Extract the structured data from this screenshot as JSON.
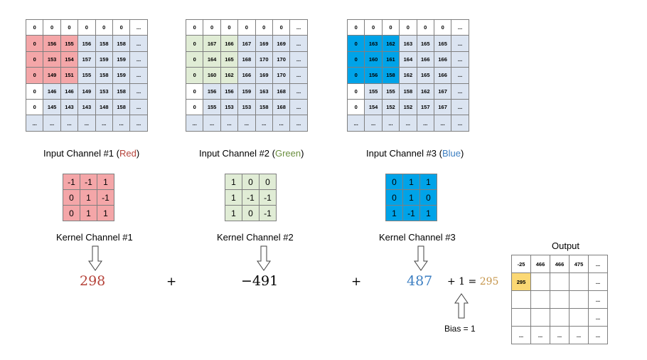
{
  "inputs": [
    {
      "title": "Input Channel #1 (",
      "color_word": "Red",
      "title_end": ")",
      "highlight": "#f4a6a8",
      "rows": [
        [
          "0",
          "0",
          "0",
          "0",
          "0",
          "0",
          "..."
        ],
        [
          "0",
          "156",
          "155",
          "156",
          "158",
          "158",
          "..."
        ],
        [
          "0",
          "153",
          "154",
          "157",
          "159",
          "159",
          "..."
        ],
        [
          "0",
          "149",
          "151",
          "155",
          "158",
          "159",
          "..."
        ],
        [
          "0",
          "146",
          "146",
          "149",
          "153",
          "158",
          "..."
        ],
        [
          "0",
          "145",
          "143",
          "143",
          "148",
          "158",
          "..."
        ],
        [
          "...",
          "...",
          "...",
          "...",
          "...",
          "...",
          "..."
        ]
      ]
    },
    {
      "title": "Input Channel #2 (",
      "color_word": "Green",
      "title_end": ")",
      "highlight": "#e0ecd5",
      "rows": [
        [
          "0",
          "0",
          "0",
          "0",
          "0",
          "0",
          "..."
        ],
        [
          "0",
          "167",
          "166",
          "167",
          "169",
          "169",
          "..."
        ],
        [
          "0",
          "164",
          "165",
          "168",
          "170",
          "170",
          "..."
        ],
        [
          "0",
          "160",
          "162",
          "166",
          "169",
          "170",
          "..."
        ],
        [
          "0",
          "156",
          "156",
          "159",
          "163",
          "168",
          "..."
        ],
        [
          "0",
          "155",
          "153",
          "153",
          "158",
          "168",
          "..."
        ],
        [
          "...",
          "...",
          "...",
          "...",
          "...",
          "...",
          "..."
        ]
      ]
    },
    {
      "title": "Input Channel #3 (",
      "color_word": "Blue",
      "title_end": ")",
      "highlight": "#00a3e8",
      "rows": [
        [
          "0",
          "0",
          "0",
          "0",
          "0",
          "0",
          "..."
        ],
        [
          "0",
          "163",
          "162",
          "163",
          "165",
          "165",
          "..."
        ],
        [
          "0",
          "160",
          "161",
          "164",
          "166",
          "166",
          "..."
        ],
        [
          "0",
          "156",
          "158",
          "162",
          "165",
          "166",
          "..."
        ],
        [
          "0",
          "155",
          "155",
          "158",
          "162",
          "167",
          "..."
        ],
        [
          "0",
          "154",
          "152",
          "152",
          "157",
          "167",
          "..."
        ],
        [
          "...",
          "...",
          "...",
          "...",
          "...",
          "...",
          "..."
        ]
      ]
    }
  ],
  "kernels": [
    {
      "title": "Kernel Channel #1",
      "color": "#f4a6a8",
      "rows": [
        [
          "-1",
          "-1",
          "1"
        ],
        [
          "0",
          "1",
          "-1"
        ],
        [
          "0",
          "1",
          "1"
        ]
      ]
    },
    {
      "title": "Kernel Channel #2",
      "color": "#e0ecd5",
      "rows": [
        [
          "1",
          "0",
          "0"
        ],
        [
          "1",
          "-1",
          "-1"
        ],
        [
          "1",
          "0",
          "-1"
        ]
      ]
    },
    {
      "title": "Kernel Channel #3",
      "color": "#00a3e8",
      "rows": [
        [
          "0",
          "1",
          "1"
        ],
        [
          "0",
          "1",
          "0"
        ],
        [
          "1",
          "-1",
          "1"
        ]
      ]
    }
  ],
  "results": {
    "r1": "298",
    "plus1": "+",
    "r2": "−491",
    "plus2": "+",
    "r3": "487",
    "bias_expr": "+ 1 = ",
    "total": "295"
  },
  "result_colors": {
    "r1": "#b5433a",
    "r2": "#000000",
    "r3": "#3d7fc2",
    "total": "#c5954a"
  },
  "bias_label": "Bias = 1",
  "output": {
    "title": "Output",
    "highlight": "#fbd874",
    "rows": [
      [
        "-25",
        "466",
        "466",
        "475",
        "..."
      ],
      [
        "295",
        "",
        "",
        "",
        "..."
      ],
      [
        "",
        "",
        "",
        "",
        "..."
      ],
      [
        "",
        "",
        "",
        "",
        "..."
      ],
      [
        "...",
        "...",
        "...",
        "...",
        "..."
      ]
    ]
  }
}
